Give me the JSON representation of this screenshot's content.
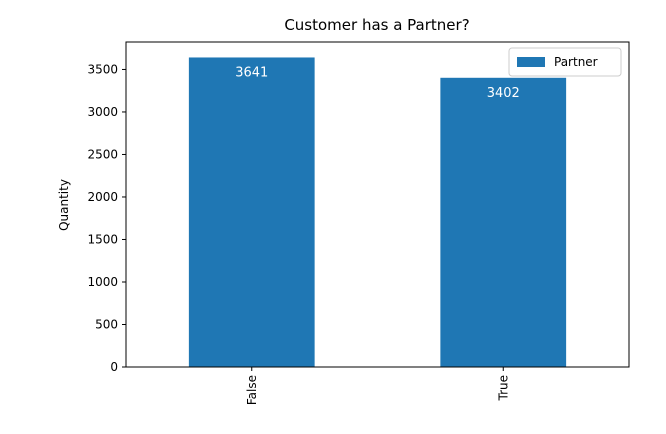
{
  "chart_data": {
    "type": "bar",
    "title": "Customer has a Partner?",
    "xlabel": "",
    "ylabel": "Quantity",
    "categories": [
      "False",
      "True"
    ],
    "series": [
      {
        "name": "Partner",
        "values": [
          3641,
          3402
        ],
        "color": "#1f77b4"
      }
    ],
    "data_labels": [
      "3641",
      "3402"
    ],
    "ylim": [
      0,
      3823
    ],
    "yticks": [
      0,
      500,
      1000,
      1500,
      2000,
      2500,
      3000,
      3500
    ],
    "grid": false,
    "legend": {
      "position": "top-right"
    }
  }
}
